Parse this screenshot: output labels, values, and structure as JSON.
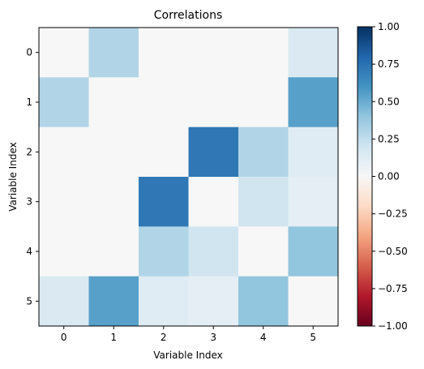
{
  "chart_data": {
    "type": "heatmap",
    "title": "Correlations",
    "xlabel": "Variable Index",
    "ylabel": "Variable Index",
    "x_ticks": [
      "0",
      "1",
      "2",
      "3",
      "4",
      "5"
    ],
    "y_ticks": [
      "0",
      "1",
      "2",
      "3",
      "4",
      "5"
    ],
    "matrix": [
      [
        0.0,
        0.3,
        0.0,
        0.0,
        0.0,
        0.15
      ],
      [
        0.3,
        0.0,
        0.0,
        0.0,
        0.0,
        0.55
      ],
      [
        0.0,
        0.0,
        0.0,
        0.72,
        0.3,
        0.12
      ],
      [
        0.0,
        0.0,
        0.72,
        0.0,
        0.2,
        0.1
      ],
      [
        0.0,
        0.0,
        0.3,
        0.2,
        0.0,
        0.4
      ],
      [
        0.15,
        0.55,
        0.12,
        0.1,
        0.4,
        0.0
      ]
    ],
    "colormap": "RdBu",
    "color_range": [
      -1.0,
      1.0
    ],
    "colorbar": {
      "ticks": [
        "1.00",
        "0.75",
        "0.50",
        "0.25",
        "0.00",
        "−0.25",
        "−0.50",
        "−0.75",
        "−1.00"
      ],
      "tick_values": [
        1.0,
        0.75,
        0.5,
        0.25,
        0.0,
        -0.25,
        -0.5,
        -0.75,
        -1.0
      ]
    }
  }
}
